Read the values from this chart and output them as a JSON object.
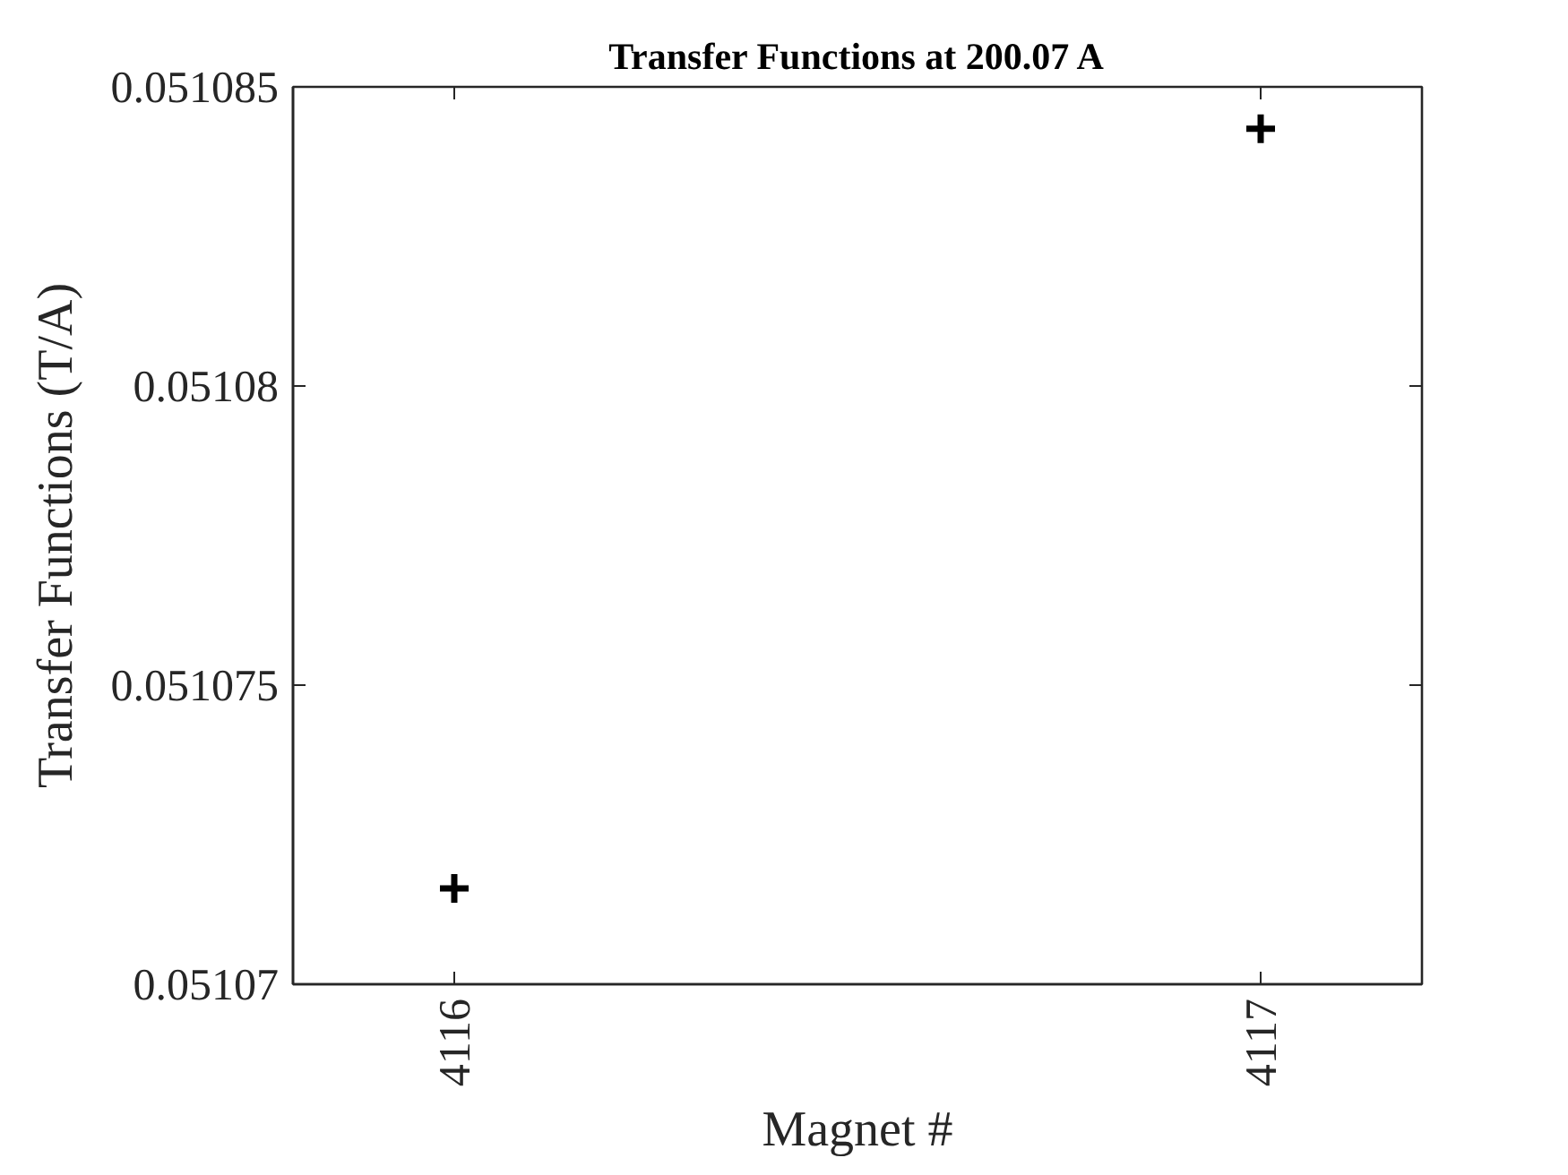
{
  "chart_data": {
    "type": "scatter",
    "title": "Transfer Functions at 200.07 A",
    "xlabel": "Magnet #",
    "ylabel": "Transfer Functions (T/A)",
    "x": [
      4116,
      4117
    ],
    "values": [
      0.0510716,
      0.0510843
    ],
    "color": "#000000",
    "marker": "cross",
    "xlim": [
      4115.8,
      4117.2
    ],
    "xticks": [
      4116,
      4117
    ],
    "ylim": [
      0.05107,
      0.051085
    ],
    "yticks": [
      0.05107,
      0.051075,
      0.05108,
      0.051085
    ]
  }
}
